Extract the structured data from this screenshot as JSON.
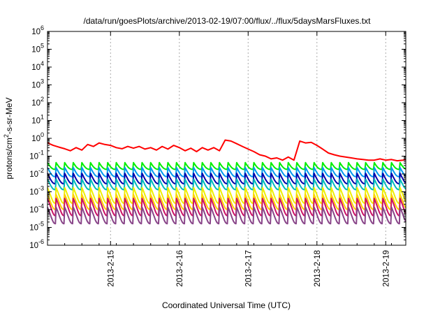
{
  "chart_data": {
    "type": "line",
    "title": "/data/run/goesPlots/archive/2013-02-19/07:00/flux/../flux/5daysMarsFluxes.txt",
    "xlabel": "Coordinated Universal Time (UTC)",
    "ylabel_prefix": "protons/cm",
    "ylabel_sup": "2",
    "ylabel_suffix": "-s-sr-MeV",
    "y_scale": "log",
    "ylim": [
      1e-06,
      1000000.0
    ],
    "y_ticks": [
      {
        "base": "10",
        "exp": "-6",
        "value": 1e-06
      },
      {
        "base": "10",
        "exp": "-5",
        "value": 1e-05
      },
      {
        "base": "10",
        "exp": "-4",
        "value": 0.0001
      },
      {
        "base": "10",
        "exp": "-3",
        "value": 0.001
      },
      {
        "base": "10",
        "exp": "-2",
        "value": 0.01
      },
      {
        "base": "10",
        "exp": "-1",
        "value": 0.1
      },
      {
        "base": "10",
        "exp": "0",
        "value": 1
      },
      {
        "base": "10",
        "exp": "1",
        "value": 10.0
      },
      {
        "base": "10",
        "exp": "2",
        "value": 100.0
      },
      {
        "base": "10",
        "exp": "3",
        "value": 1000.0
      },
      {
        "base": "10",
        "exp": "4",
        "value": 10000.0
      },
      {
        "base": "10",
        "exp": "5",
        "value": 100000.0
      },
      {
        "base": "10",
        "exp": "6",
        "value": 1000000.0
      }
    ],
    "xlim": [
      "2013-02-14T02:00",
      "2013-02-19T07:00"
    ],
    "x_ticks": [
      "2013-2-15",
      "2013-2-16",
      "2013-2-17",
      "2013-2-18",
      "2013-2-19"
    ],
    "grid": true,
    "legend": "none",
    "series": [
      {
        "color": "#ff0000",
        "x": [
          "2013-02-14T02:00",
          "2013-02-14T04:00",
          "2013-02-14T06:00",
          "2013-02-14T08:00",
          "2013-02-14T10:00",
          "2013-02-14T12:00",
          "2013-02-14T14:00",
          "2013-02-14T16:00",
          "2013-02-14T18:00",
          "2013-02-14T20:00",
          "2013-02-14T22:00",
          "2013-02-15T00:00",
          "2013-02-15T02:00",
          "2013-02-15T04:00",
          "2013-02-15T06:00",
          "2013-02-15T08:00",
          "2013-02-15T10:00",
          "2013-02-15T12:00",
          "2013-02-15T14:00",
          "2013-02-15T16:00",
          "2013-02-15T18:00",
          "2013-02-15T20:00",
          "2013-02-15T22:00",
          "2013-02-16T00:00",
          "2013-02-16T02:00",
          "2013-02-16T04:00",
          "2013-02-16T06:00",
          "2013-02-16T08:00",
          "2013-02-16T10:00",
          "2013-02-16T12:00",
          "2013-02-16T14:00",
          "2013-02-16T16:00",
          "2013-02-16T18:00",
          "2013-02-16T20:00",
          "2013-02-16T22:00",
          "2013-02-17T00:00",
          "2013-02-17T02:00",
          "2013-02-17T04:00",
          "2013-02-17T06:00",
          "2013-02-17T08:00",
          "2013-02-17T10:00",
          "2013-02-17T12:00",
          "2013-02-17T14:00",
          "2013-02-17T16:00",
          "2013-02-17T18:00",
          "2013-02-17T20:00",
          "2013-02-17T22:00",
          "2013-02-18T00:00",
          "2013-02-18T02:00",
          "2013-02-18T04:00",
          "2013-02-18T06:00",
          "2013-02-18T08:00",
          "2013-02-18T10:00",
          "2013-02-18T12:00",
          "2013-02-18T14:00",
          "2013-02-18T16:00",
          "2013-02-18T18:00",
          "2013-02-18T20:00",
          "2013-02-18T22:00",
          "2013-02-19T00:00",
          "2013-02-19T02:00",
          "2013-02-19T04:00",
          "2013-02-19T06:00",
          "2013-02-19T07:00"
        ],
        "y": [
          0.55,
          0.4,
          0.32,
          0.26,
          0.2,
          0.3,
          0.22,
          0.45,
          0.35,
          0.55,
          0.45,
          0.4,
          0.3,
          0.26,
          0.35,
          0.28,
          0.35,
          0.25,
          0.3,
          0.22,
          0.35,
          0.25,
          0.4,
          0.3,
          0.2,
          0.28,
          0.18,
          0.3,
          0.22,
          0.3,
          0.2,
          0.8,
          0.7,
          0.5,
          0.35,
          0.25,
          0.18,
          0.12,
          0.1,
          0.07,
          0.08,
          0.06,
          0.09,
          0.06,
          0.7,
          0.55,
          0.6,
          0.4,
          0.25,
          0.15,
          0.12,
          0.1,
          0.09,
          0.08,
          0.07,
          0.065,
          0.06,
          0.06,
          0.07,
          0.06,
          0.065,
          0.055,
          0.06,
          0.065
        ]
      },
      {
        "color": "#00ee00",
        "base": 0.018,
        "amp": 0.025,
        "period_h": 3
      },
      {
        "color": "#0099ee",
        "base": 0.007,
        "amp": 0.016,
        "period_h": 3
      },
      {
        "color": "#0000aa",
        "base": 0.0028,
        "amp": 0.008,
        "period_h": 3
      },
      {
        "color": "#00bbbb",
        "base": 0.0013,
        "amp": 0.0038,
        "period_h": 3
      },
      {
        "color": "#eeee00",
        "base": 0.00022,
        "amp": 0.0015,
        "period_h": 3
      },
      {
        "color": "#ffd000",
        "base": 0.0001,
        "amp": 0.0006,
        "period_h": 3
      },
      {
        "color": "#cc1166",
        "base": 4.5e-05,
        "amp": 0.00038,
        "period_h": 3
      },
      {
        "color": "#884488",
        "base": 1.6e-05,
        "amp": 0.00012,
        "period_h": 3
      }
    ]
  }
}
